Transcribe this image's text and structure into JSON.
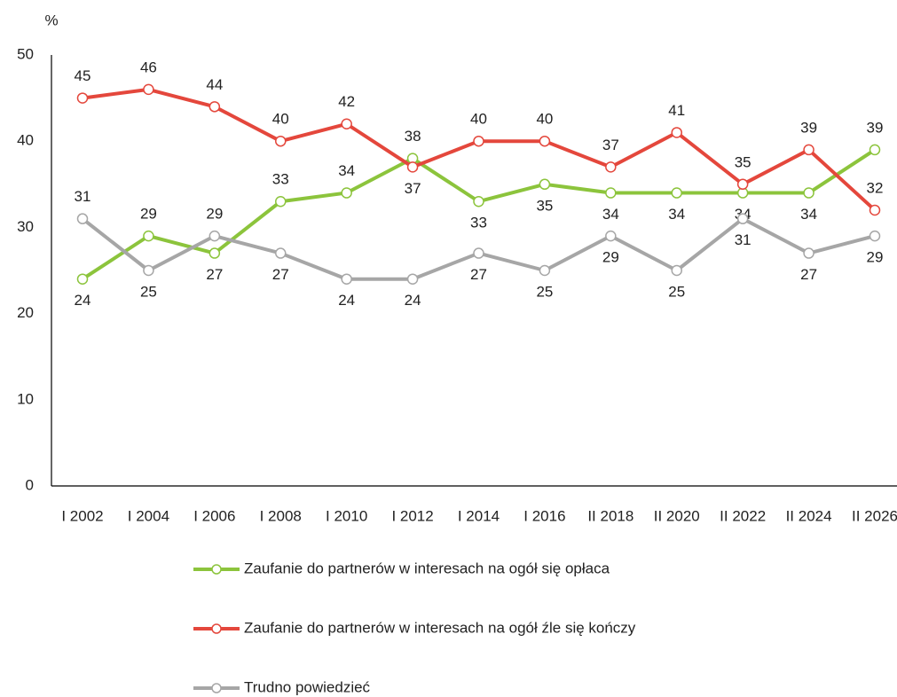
{
  "chart_data": {
    "type": "line",
    "y_label": "%",
    "categories": [
      "I 2002",
      "I 2004",
      "I 2006",
      "I 2008",
      "I 2010",
      "I 2012",
      "I 2014",
      "I 2016",
      "II 2018",
      "II 2020",
      "II 2022",
      "II 2024",
      "II 2026"
    ],
    "series": [
      {
        "name": "Zaufanie do partnerów w interesach na ogół się opłaca",
        "color": "#8cc43c",
        "values": [
          24,
          29,
          27,
          33,
          34,
          38,
          33,
          35,
          34,
          34,
          34,
          34,
          39
        ]
      },
      {
        "name": "Zaufanie do partnerów w interesach na ogół źle się kończy",
        "color": "#e4473c",
        "values": [
          45,
          46,
          44,
          40,
          42,
          37,
          40,
          40,
          37,
          41,
          35,
          39,
          32
        ]
      },
      {
        "name": "Trudno powiedzieć",
        "color": "#a6a6a6",
        "values": [
          31,
          25,
          29,
          27,
          24,
          24,
          27,
          25,
          29,
          25,
          31,
          27,
          29
        ]
      }
    ],
    "ylim": [
      0,
      50
    ],
    "yticks": [
      0,
      10,
      20,
      30,
      40,
      50
    ],
    "grid": false
  }
}
